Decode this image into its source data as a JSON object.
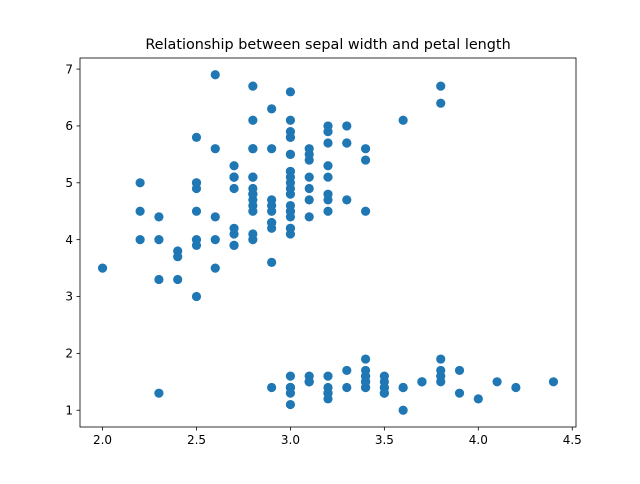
{
  "chart_data": {
    "type": "scatter",
    "title": "Relationship between sepal width and petal length",
    "xlabel": "",
    "ylabel": "",
    "xlim": [
      1.88,
      4.52
    ],
    "ylim": [
      0.705,
      7.195
    ],
    "xticks": [
      2.0,
      2.5,
      3.0,
      3.5,
      4.0,
      4.5
    ],
    "yticks": [
      1,
      2,
      3,
      4,
      5,
      6,
      7
    ],
    "xtick_labels": [
      "2.0",
      "2.5",
      "3.0",
      "3.5",
      "4.0",
      "4.5"
    ],
    "ytick_labels": [
      "1",
      "2",
      "3",
      "4",
      "5",
      "6",
      "7"
    ],
    "grid": false,
    "legend": "none",
    "marker_color": "#1f77b4",
    "series": [
      {
        "points": [
          [
            3.5,
            1.4
          ],
          [
            3.0,
            1.4
          ],
          [
            3.2,
            1.3
          ],
          [
            3.1,
            1.5
          ],
          [
            3.6,
            1.4
          ],
          [
            3.9,
            1.7
          ],
          [
            3.4,
            1.4
          ],
          [
            3.4,
            1.5
          ],
          [
            2.9,
            1.4
          ],
          [
            3.1,
            1.5
          ],
          [
            3.7,
            1.5
          ],
          [
            3.4,
            1.6
          ],
          [
            3.0,
            1.4
          ],
          [
            3.0,
            1.1
          ],
          [
            4.0,
            1.2
          ],
          [
            4.4,
            1.5
          ],
          [
            3.9,
            1.3
          ],
          [
            3.5,
            1.4
          ],
          [
            3.8,
            1.7
          ],
          [
            3.8,
            1.5
          ],
          [
            3.4,
            1.7
          ],
          [
            3.7,
            1.5
          ],
          [
            3.6,
            1.0
          ],
          [
            3.3,
            1.7
          ],
          [
            3.4,
            1.9
          ],
          [
            3.0,
            1.6
          ],
          [
            3.4,
            1.6
          ],
          [
            3.5,
            1.5
          ],
          [
            3.4,
            1.4
          ],
          [
            3.2,
            1.6
          ],
          [
            3.1,
            1.6
          ],
          [
            3.4,
            1.5
          ],
          [
            4.1,
            1.5
          ],
          [
            4.2,
            1.4
          ],
          [
            3.1,
            1.5
          ],
          [
            3.2,
            1.2
          ],
          [
            3.5,
            1.3
          ],
          [
            3.6,
            1.4
          ],
          [
            3.0,
            1.3
          ],
          [
            3.4,
            1.5
          ],
          [
            3.5,
            1.3
          ],
          [
            2.3,
            1.3
          ],
          [
            3.2,
            1.3
          ],
          [
            3.5,
            1.6
          ],
          [
            3.8,
            1.9
          ],
          [
            3.0,
            1.4
          ],
          [
            3.8,
            1.6
          ],
          [
            3.2,
            1.4
          ],
          [
            3.7,
            1.5
          ],
          [
            3.3,
            1.4
          ],
          [
            3.2,
            4.7
          ],
          [
            3.2,
            4.5
          ],
          [
            3.1,
            4.9
          ],
          [
            2.3,
            4.0
          ],
          [
            2.8,
            4.6
          ],
          [
            2.8,
            4.5
          ],
          [
            3.3,
            4.7
          ],
          [
            2.4,
            3.3
          ],
          [
            2.9,
            4.6
          ],
          [
            2.7,
            3.9
          ],
          [
            2.0,
            3.5
          ],
          [
            3.0,
            4.2
          ],
          [
            2.2,
            4.0
          ],
          [
            2.9,
            4.7
          ],
          [
            2.9,
            3.6
          ],
          [
            3.1,
            4.4
          ],
          [
            3.0,
            4.5
          ],
          [
            2.7,
            4.1
          ],
          [
            2.2,
            4.5
          ],
          [
            2.5,
            3.9
          ],
          [
            3.2,
            4.8
          ],
          [
            2.8,
            4.0
          ],
          [
            2.5,
            4.9
          ],
          [
            2.8,
            4.7
          ],
          [
            2.9,
            4.3
          ],
          [
            3.0,
            4.4
          ],
          [
            2.8,
            4.8
          ],
          [
            3.0,
            5.0
          ],
          [
            2.9,
            4.5
          ],
          [
            2.6,
            3.5
          ],
          [
            2.4,
            3.8
          ],
          [
            2.4,
            3.7
          ],
          [
            2.7,
            3.9
          ],
          [
            2.7,
            5.1
          ],
          [
            3.0,
            4.5
          ],
          [
            3.4,
            4.5
          ],
          [
            3.1,
            4.7
          ],
          [
            2.3,
            4.4
          ],
          [
            3.0,
            4.1
          ],
          [
            2.5,
            4.0
          ],
          [
            2.6,
            4.4
          ],
          [
            3.0,
            4.6
          ],
          [
            2.6,
            4.0
          ],
          [
            2.3,
            3.3
          ],
          [
            2.7,
            4.2
          ],
          [
            3.0,
            4.2
          ],
          [
            2.9,
            4.2
          ],
          [
            2.9,
            4.3
          ],
          [
            2.5,
            3.0
          ],
          [
            2.8,
            4.1
          ],
          [
            3.3,
            6.0
          ],
          [
            2.7,
            5.1
          ],
          [
            3.0,
            5.9
          ],
          [
            2.9,
            5.6
          ],
          [
            3.0,
            5.8
          ],
          [
            3.0,
            6.6
          ],
          [
            2.5,
            4.5
          ],
          [
            2.9,
            6.3
          ],
          [
            2.5,
            5.8
          ],
          [
            3.6,
            6.1
          ],
          [
            3.2,
            5.1
          ],
          [
            2.7,
            5.3
          ],
          [
            3.0,
            5.5
          ],
          [
            2.5,
            5.0
          ],
          [
            2.8,
            5.1
          ],
          [
            3.2,
            5.3
          ],
          [
            3.0,
            5.5
          ],
          [
            3.8,
            6.7
          ],
          [
            2.6,
            6.9
          ],
          [
            2.2,
            5.0
          ],
          [
            3.2,
            5.7
          ],
          [
            2.8,
            4.9
          ],
          [
            2.8,
            6.7
          ],
          [
            2.7,
            4.9
          ],
          [
            3.3,
            5.7
          ],
          [
            3.2,
            6.0
          ],
          [
            2.8,
            4.8
          ],
          [
            3.0,
            4.9
          ],
          [
            2.8,
            5.6
          ],
          [
            3.0,
            5.8
          ],
          [
            2.8,
            6.1
          ],
          [
            3.8,
            6.4
          ],
          [
            2.8,
            5.6
          ],
          [
            2.8,
            5.1
          ],
          [
            2.6,
            5.6
          ],
          [
            3.0,
            6.1
          ],
          [
            3.4,
            5.6
          ],
          [
            3.1,
            5.5
          ],
          [
            3.0,
            4.8
          ],
          [
            3.1,
            5.4
          ],
          [
            3.1,
            5.6
          ],
          [
            3.1,
            5.1
          ],
          [
            2.7,
            5.1
          ],
          [
            3.2,
            5.9
          ],
          [
            3.3,
            5.7
          ],
          [
            3.0,
            5.2
          ],
          [
            2.5,
            5.0
          ],
          [
            3.0,
            5.2
          ],
          [
            3.4,
            5.4
          ],
          [
            3.0,
            5.1
          ]
        ]
      }
    ]
  }
}
